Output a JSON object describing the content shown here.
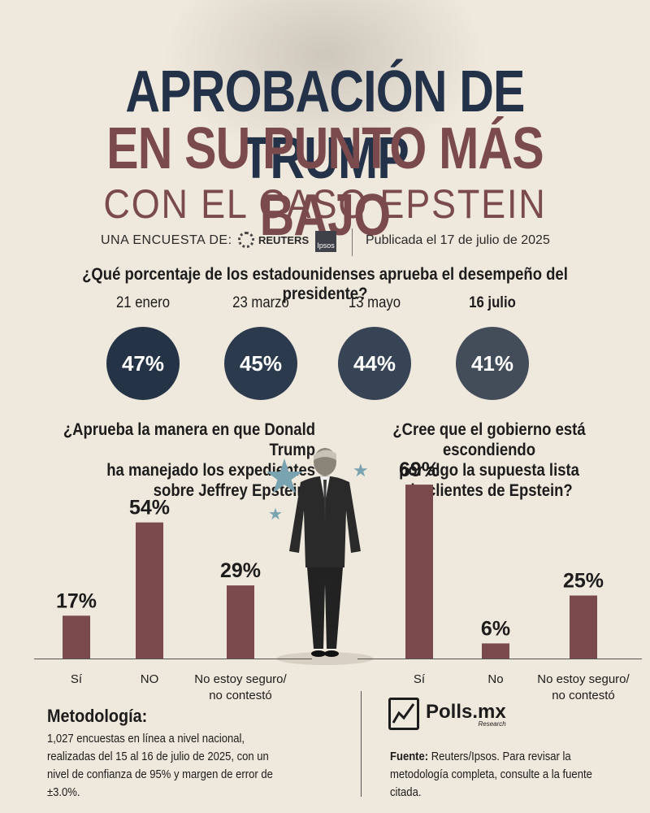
{
  "header": {
    "title_line1": "APROBACIÓN DE TRUMP",
    "title_line2": "EN SU PUNTO MÁS BAJO",
    "title_line3": "CON EL CASO EPSTEIN",
    "byline": "UNA ENCUESTA DE:",
    "reuters_label": "REUTERS",
    "ipsos_label": "Ipsos",
    "published": "Publicada el 17 de julio de 2025"
  },
  "approval": {
    "question": "¿Qué porcentaje de los estadounidenses aprueba el desempeño del presidente?",
    "items": [
      {
        "date": "21 enero",
        "label": "47%",
        "color": "#253347"
      },
      {
        "date": "23 marzo",
        "label": "45%",
        "color": "#2c3a4e"
      },
      {
        "date": "13 mayo",
        "label": "44%",
        "color": "#364456"
      },
      {
        "date": "16 julio",
        "label": "41%",
        "color": "#434d5a"
      }
    ]
  },
  "chart_data": [
    {
      "type": "bar",
      "title": "¿Aprueba la manera en que Donald Trump ha manejado los expedientes sobre Jeffrey Epstein?",
      "title_lines": [
        "¿Aprueba la manera en que Donald Trump",
        "ha manejado los expedientes",
        "sobre Jeffrey Epstein?"
      ],
      "categories": [
        "Sí",
        "NO",
        "No estoy seguro/\nno contestó"
      ],
      "values": [
        17,
        54,
        29
      ],
      "labels": [
        "17%",
        "54%",
        "29%"
      ],
      "color": "#7a4a4c"
    },
    {
      "type": "bar",
      "title": "¿Cree que el gobierno está escondiendo por algo la supuesta lista de clientes de Epstein?",
      "title_lines": [
        "¿Cree que el gobierno está escondiendo",
        "por algo la supuesta lista",
        "de clientes de Epstein?"
      ],
      "categories": [
        "Sí",
        "No",
        "No estoy seguro/\nno contestó"
      ],
      "values": [
        69,
        6,
        25
      ],
      "labels": [
        "69%",
        "6%",
        "25%"
      ],
      "color": "#7a4a4c"
    }
  ],
  "methodology": {
    "title": "Metodología:",
    "text": "1,027 encuestas en línea a nivel nacional, realizadas del 15 al 16 de julio de 2025, con un nivel de confianza de 95% y margen de error de ±3.0%."
  },
  "brand": {
    "name": "Polls.mx",
    "sub": "Research"
  },
  "source": {
    "label": "Fuente:",
    "text": "Reuters/Ipsos. Para revisar la metodología completa, consulte a la fuente citada."
  }
}
